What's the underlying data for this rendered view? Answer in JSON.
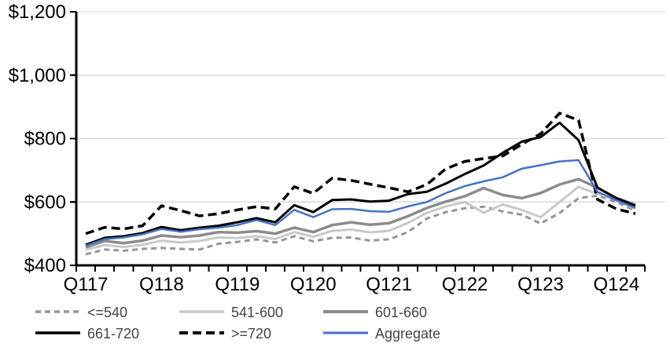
{
  "chart_data": {
    "type": "line",
    "title": "",
    "x": {
      "categories": [
        "Q117",
        "Q217",
        "Q317",
        "Q417",
        "Q118",
        "Q218",
        "Q318",
        "Q418",
        "Q119",
        "Q219",
        "Q319",
        "Q419",
        "Q120",
        "Q220",
        "Q320",
        "Q420",
        "Q121",
        "Q221",
        "Q321",
        "Q421",
        "Q122",
        "Q222",
        "Q322",
        "Q422",
        "Q123",
        "Q223",
        "Q323",
        "Q423",
        "Q124",
        "Q224"
      ],
      "axis_tick_labels": [
        "Q117",
        "Q118",
        "Q119",
        "Q120",
        "Q121",
        "Q122",
        "Q123",
        "Q124"
      ]
    },
    "y": {
      "min": 400,
      "max": 1200,
      "step": 200,
      "tick_labels": [
        "$400",
        "$600",
        "$800",
        "$1,000",
        "$1,200"
      ],
      "unit": "USD"
    },
    "grid": "horizontal",
    "gridline_color": "#D9D9D9",
    "axis_color": "#000000",
    "axis_label_color": "#000000",
    "legend_text_color": "#444444",
    "legend_position": "bottom",
    "series": [
      {
        "id": "le-540",
        "name": "<=540",
        "color": "#969696",
        "style": "dashed",
        "dash": "7 5",
        "width": 3,
        "values": [
          435,
          450,
          446,
          452,
          455,
          452,
          450,
          468,
          474,
          482,
          472,
          492,
          476,
          487,
          488,
          478,
          482,
          505,
          548,
          568,
          580,
          585,
          570,
          560,
          532,
          565,
          612,
          620,
          600,
          572
        ]
      },
      {
        "id": "541-600",
        "name": "541-600",
        "color": "#C9C9C9",
        "style": "solid",
        "dash": null,
        "width": 3,
        "values": [
          450,
          464,
          458,
          465,
          478,
          472,
          477,
          488,
          486,
          492,
          483,
          505,
          490,
          509,
          513,
          504,
          509,
          534,
          566,
          586,
          600,
          566,
          592,
          575,
          552,
          600,
          648,
          625,
          608,
          578
        ]
      },
      {
        "id": "601-660",
        "name": "601-660",
        "color": "#8C8C8C",
        "style": "solid",
        "dash": null,
        "width": 3.5,
        "values": [
          457,
          477,
          470,
          478,
          494,
          489,
          494,
          505,
          503,
          508,
          500,
          519,
          505,
          527,
          536,
          528,
          533,
          555,
          581,
          601,
          618,
          644,
          622,
          612,
          628,
          655,
          672,
          645,
          612,
          592
        ]
      },
      {
        "id": "661-720",
        "name": "661-720",
        "color": "#000000",
        "style": "solid",
        "dash": null,
        "width": 3,
        "values": [
          465,
          487,
          492,
          502,
          521,
          511,
          519,
          525,
          536,
          549,
          536,
          590,
          568,
          606,
          608,
          601,
          604,
          625,
          632,
          658,
          688,
          715,
          755,
          790,
          805,
          850,
          795,
          645,
          612,
          588
        ]
      },
      {
        "id": "ge-720",
        "name": ">=720",
        "color": "#000000",
        "style": "dashed",
        "dash": "11 6",
        "width": 3.5,
        "values": [
          500,
          520,
          515,
          525,
          588,
          573,
          556,
          563,
          575,
          585,
          578,
          648,
          627,
          675,
          668,
          656,
          645,
          632,
          655,
          705,
          728,
          737,
          745,
          782,
          815,
          880,
          858,
          608,
          578,
          563
        ]
      },
      {
        "id": "aggregate",
        "name": "Aggregate",
        "color": "#4472C4",
        "style": "solid",
        "dash": null,
        "width": 2.5,
        "values": [
          462,
          483,
          488,
          498,
          515,
          506,
          514,
          519,
          527,
          543,
          527,
          575,
          552,
          577,
          578,
          571,
          569,
          586,
          600,
          628,
          650,
          665,
          678,
          705,
          716,
          728,
          732,
          632,
          605,
          581
        ]
      }
    ],
    "legend_rows": [
      [
        "le-540",
        "541-600",
        "601-660"
      ],
      [
        "661-720",
        "ge-720",
        "aggregate"
      ]
    ]
  }
}
